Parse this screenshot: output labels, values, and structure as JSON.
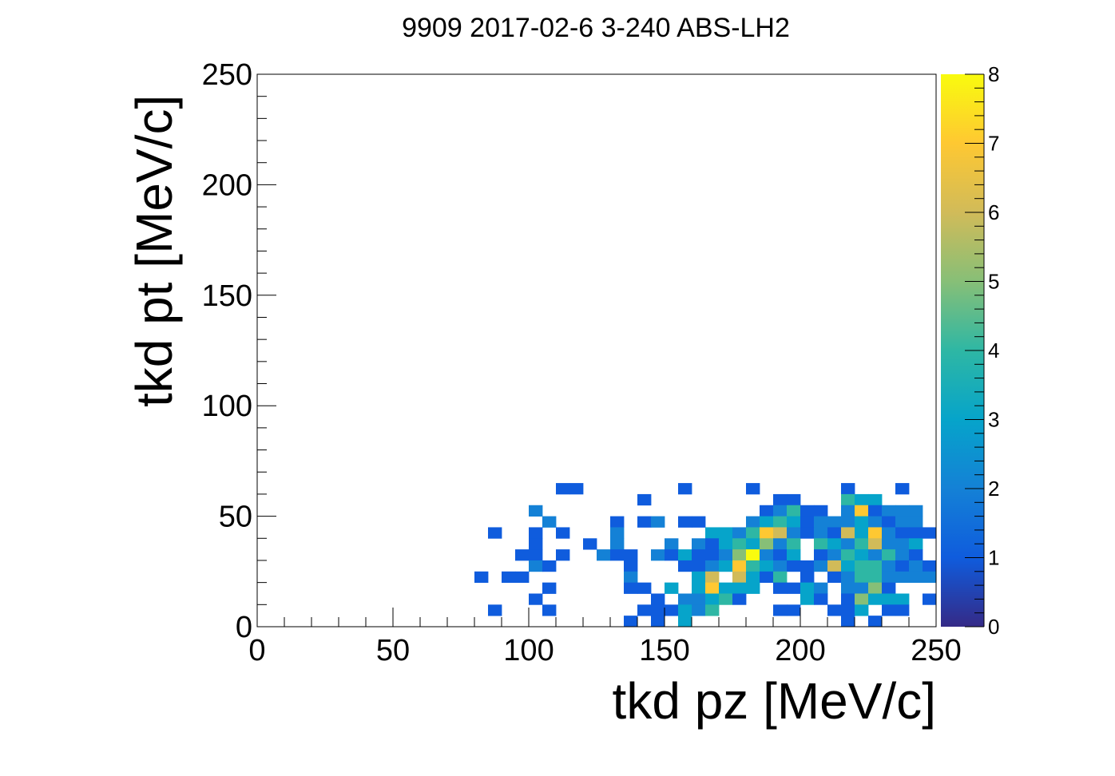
{
  "chart_data": {
    "type": "heatmap",
    "title": "9909 2017-02-6 3-240 ABS-LH2",
    "xlabel": "tkd pz [MeV/c]",
    "ylabel": "tkd pt [MeV/c]",
    "xlim": [
      0,
      250
    ],
    "ylim": [
      0,
      250
    ],
    "zlim": [
      0,
      8
    ],
    "x_ticks": [
      "0",
      "50",
      "100",
      "150",
      "200",
      "250"
    ],
    "y_ticks": [
      "0",
      "50",
      "100",
      "150",
      "200",
      "250"
    ],
    "z_ticks": [
      "0",
      "1",
      "2",
      "3",
      "4",
      "5",
      "6",
      "7",
      "8"
    ],
    "bin_width": 5,
    "colormap": [
      "#352a87",
      "#0f5cdd",
      "#1481d6",
      "#06a4ca",
      "#2eb7a4",
      "#87bf77",
      "#d1bb59",
      "#fec832",
      "#f9fb0e"
    ],
    "bins": [
      [
        110,
        60,
        1
      ],
      [
        115,
        60,
        1
      ],
      [
        155,
        60,
        1
      ],
      [
        180,
        60,
        1
      ],
      [
        215,
        60,
        1
      ],
      [
        235,
        60,
        1
      ],
      [
        140,
        55,
        1
      ],
      [
        190,
        55,
        1
      ],
      [
        195,
        55,
        1
      ],
      [
        215,
        55,
        4
      ],
      [
        220,
        55,
        3
      ],
      [
        225,
        55,
        3
      ],
      [
        100,
        50,
        2
      ],
      [
        185,
        50,
        1
      ],
      [
        190,
        50,
        2
      ],
      [
        195,
        50,
        4
      ],
      [
        200,
        50,
        1
      ],
      [
        205,
        50,
        1
      ],
      [
        215,
        50,
        2
      ],
      [
        220,
        50,
        7
      ],
      [
        225,
        50,
        1
      ],
      [
        230,
        50,
        2
      ],
      [
        235,
        50,
        2
      ],
      [
        240,
        50,
        2
      ],
      [
        105,
        45,
        2
      ],
      [
        130,
        45,
        1
      ],
      [
        140,
        45,
        1
      ],
      [
        145,
        45,
        2
      ],
      [
        155,
        45,
        1
      ],
      [
        160,
        45,
        1
      ],
      [
        180,
        45,
        2
      ],
      [
        185,
        45,
        3
      ],
      [
        190,
        45,
        4
      ],
      [
        195,
        45,
        3
      ],
      [
        200,
        45,
        1
      ],
      [
        205,
        45,
        2
      ],
      [
        210,
        45,
        2
      ],
      [
        215,
        45,
        2
      ],
      [
        220,
        45,
        3
      ],
      [
        225,
        45,
        2
      ],
      [
        230,
        45,
        1
      ],
      [
        235,
        45,
        2
      ],
      [
        240,
        45,
        2
      ],
      [
        85,
        40,
        1
      ],
      [
        100,
        40,
        1
      ],
      [
        110,
        40,
        1
      ],
      [
        130,
        40,
        2
      ],
      [
        165,
        40,
        3
      ],
      [
        170,
        40,
        3
      ],
      [
        175,
        40,
        2
      ],
      [
        180,
        40,
        4
      ],
      [
        185,
        40,
        7
      ],
      [
        190,
        40,
        6
      ],
      [
        195,
        40,
        2
      ],
      [
        200,
        40,
        1
      ],
      [
        205,
        40,
        2
      ],
      [
        210,
        40,
        1
      ],
      [
        215,
        40,
        6
      ],
      [
        220,
        40,
        3
      ],
      [
        225,
        40,
        7
      ],
      [
        230,
        40,
        2
      ],
      [
        235,
        40,
        1
      ],
      [
        240,
        40,
        1
      ],
      [
        245,
        40,
        1
      ],
      [
        100,
        35,
        1
      ],
      [
        120,
        35,
        1
      ],
      [
        130,
        35,
        2
      ],
      [
        150,
        35,
        2
      ],
      [
        160,
        35,
        2
      ],
      [
        165,
        35,
        1
      ],
      [
        170,
        35,
        3
      ],
      [
        175,
        35,
        4
      ],
      [
        180,
        35,
        3
      ],
      [
        185,
        35,
        5
      ],
      [
        190,
        35,
        2
      ],
      [
        195,
        35,
        4
      ],
      [
        205,
        35,
        4
      ],
      [
        210,
        35,
        3
      ],
      [
        215,
        35,
        2
      ],
      [
        220,
        35,
        4
      ],
      [
        225,
        35,
        6
      ],
      [
        230,
        35,
        2
      ],
      [
        235,
        35,
        2
      ],
      [
        240,
        35,
        3
      ],
      [
        95,
        30,
        1
      ],
      [
        100,
        30,
        1
      ],
      [
        110,
        30,
        1
      ],
      [
        125,
        30,
        2
      ],
      [
        130,
        30,
        1
      ],
      [
        135,
        30,
        1
      ],
      [
        145,
        30,
        2
      ],
      [
        150,
        30,
        1
      ],
      [
        155,
        30,
        3
      ],
      [
        160,
        30,
        1
      ],
      [
        165,
        30,
        1
      ],
      [
        170,
        30,
        2
      ],
      [
        175,
        30,
        5
      ],
      [
        180,
        30,
        8
      ],
      [
        185,
        30,
        2
      ],
      [
        190,
        30,
        1
      ],
      [
        195,
        30,
        3
      ],
      [
        205,
        30,
        1
      ],
      [
        210,
        30,
        2
      ],
      [
        215,
        30,
        4
      ],
      [
        220,
        30,
        3
      ],
      [
        225,
        30,
        2
      ],
      [
        230,
        30,
        4
      ],
      [
        235,
        30,
        2
      ],
      [
        240,
        30,
        1
      ],
      [
        100,
        25,
        2
      ],
      [
        105,
        25,
        1
      ],
      [
        135,
        25,
        1
      ],
      [
        155,
        25,
        1
      ],
      [
        160,
        25,
        1
      ],
      [
        165,
        25,
        2
      ],
      [
        170,
        25,
        3
      ],
      [
        175,
        25,
        7
      ],
      [
        180,
        25,
        4
      ],
      [
        185,
        25,
        3
      ],
      [
        190,
        25,
        2
      ],
      [
        195,
        25,
        1
      ],
      [
        200,
        25,
        1
      ],
      [
        205,
        25,
        2
      ],
      [
        210,
        25,
        6
      ],
      [
        215,
        25,
        3
      ],
      [
        220,
        25,
        4
      ],
      [
        225,
        25,
        4
      ],
      [
        230,
        25,
        2
      ],
      [
        235,
        25,
        1
      ],
      [
        240,
        25,
        2
      ],
      [
        245,
        25,
        1
      ],
      [
        80,
        20,
        1
      ],
      [
        90,
        20,
        1
      ],
      [
        95,
        20,
        1
      ],
      [
        135,
        20,
        2
      ],
      [
        160,
        20,
        3
      ],
      [
        165,
        20,
        6
      ],
      [
        175,
        20,
        6
      ],
      [
        180,
        20,
        3
      ],
      [
        185,
        20,
        1
      ],
      [
        190,
        20,
        4
      ],
      [
        200,
        20,
        1
      ],
      [
        210,
        20,
        1
      ],
      [
        215,
        20,
        2
      ],
      [
        220,
        20,
        4
      ],
      [
        225,
        20,
        4
      ],
      [
        230,
        20,
        2
      ],
      [
        235,
        20,
        2
      ],
      [
        240,
        20,
        2
      ],
      [
        245,
        20,
        2
      ],
      [
        105,
        15,
        1
      ],
      [
        135,
        15,
        1
      ],
      [
        140,
        15,
        1
      ],
      [
        150,
        15,
        3
      ],
      [
        160,
        15,
        3
      ],
      [
        165,
        15,
        7
      ],
      [
        170,
        15,
        3
      ],
      [
        175,
        15,
        3
      ],
      [
        180,
        15,
        3
      ],
      [
        190,
        15,
        1
      ],
      [
        195,
        15,
        1
      ],
      [
        200,
        15,
        3
      ],
      [
        205,
        15,
        2
      ],
      [
        215,
        15,
        2
      ],
      [
        220,
        15,
        2
      ],
      [
        225,
        15,
        5
      ],
      [
        230,
        15,
        1
      ],
      [
        100,
        10,
        1
      ],
      [
        145,
        10,
        1
      ],
      [
        155,
        10,
        2
      ],
      [
        160,
        10,
        2
      ],
      [
        165,
        10,
        3
      ],
      [
        170,
        10,
        4
      ],
      [
        175,
        10,
        1
      ],
      [
        200,
        10,
        3
      ],
      [
        205,
        10,
        1
      ],
      [
        215,
        10,
        1
      ],
      [
        220,
        10,
        5
      ],
      [
        225,
        10,
        3
      ],
      [
        230,
        10,
        3
      ],
      [
        235,
        10,
        3
      ],
      [
        245,
        10,
        1
      ],
      [
        85,
        5,
        1
      ],
      [
        105,
        5,
        1
      ],
      [
        140,
        5,
        1
      ],
      [
        145,
        5,
        1
      ],
      [
        150,
        5,
        1
      ],
      [
        155,
        5,
        3
      ],
      [
        160,
        5,
        2
      ],
      [
        165,
        5,
        4
      ],
      [
        190,
        5,
        1
      ],
      [
        195,
        5,
        1
      ],
      [
        210,
        5,
        1
      ],
      [
        215,
        5,
        1
      ],
      [
        220,
        5,
        3
      ],
      [
        230,
        5,
        1
      ],
      [
        235,
        5,
        1
      ],
      [
        135,
        0,
        1
      ],
      [
        145,
        0,
        1
      ],
      [
        155,
        0,
        3
      ],
      [
        215,
        0,
        1
      ],
      [
        225,
        0,
        1
      ]
    ]
  }
}
